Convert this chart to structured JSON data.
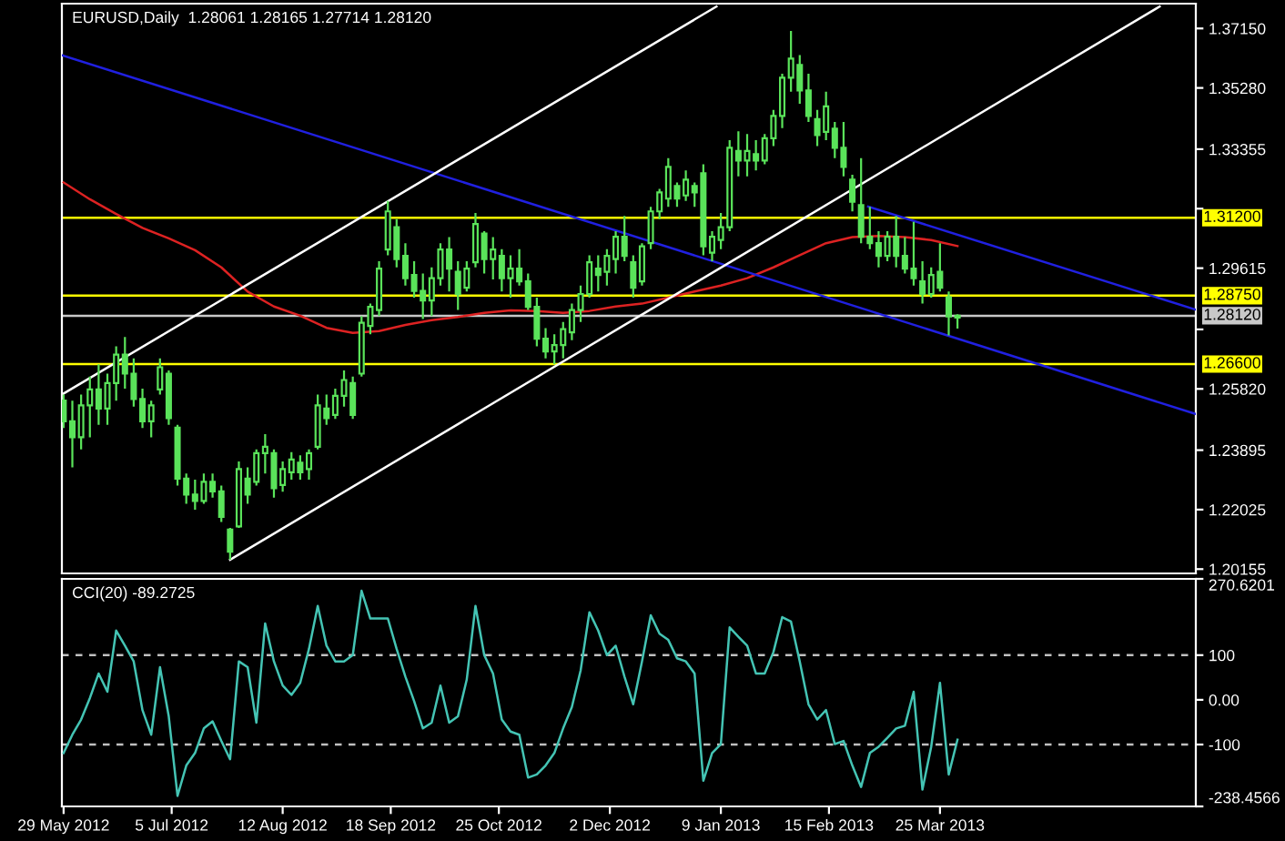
{
  "chart_data": [
    {
      "type": "candlestick",
      "title": "EURUSD,Daily  1.28061 1.28165 1.27714 1.28120",
      "color": "#5ae35a",
      "x": [
        "2012-05-29",
        "2012-06-01",
        "2012-06-04",
        "2012-06-07",
        "2012-06-10",
        "2012-06-13",
        "2012-06-16",
        "2012-06-19",
        "2012-06-22",
        "2012-06-25",
        "2012-06-28",
        "2012-07-01",
        "2012-07-04",
        "2012-07-07",
        "2012-07-10",
        "2012-07-13",
        "2012-07-16",
        "2012-07-19",
        "2012-07-22",
        "2012-07-25",
        "2012-07-28",
        "2012-07-31",
        "2012-08-03",
        "2012-08-06",
        "2012-08-09",
        "2012-08-12",
        "2012-08-15",
        "2012-08-18",
        "2012-08-21",
        "2012-08-24",
        "2012-08-27",
        "2012-08-30",
        "2012-09-02",
        "2012-09-05",
        "2012-09-08",
        "2012-09-11",
        "2012-09-14",
        "2012-09-17",
        "2012-09-20",
        "2012-09-23",
        "2012-09-26",
        "2012-09-29",
        "2012-10-02",
        "2012-10-05",
        "2012-10-08",
        "2012-10-11",
        "2012-10-14",
        "2012-10-17",
        "2012-10-20",
        "2012-10-23",
        "2012-10-26",
        "2012-10-29",
        "2012-11-01",
        "2012-11-04",
        "2012-11-07",
        "2012-11-10",
        "2012-11-13",
        "2012-11-16",
        "2012-11-19",
        "2012-11-22",
        "2012-11-25",
        "2012-11-28",
        "2012-12-01",
        "2012-12-04",
        "2012-12-07",
        "2012-12-10",
        "2012-12-13",
        "2012-12-16",
        "2012-12-19",
        "2012-12-22",
        "2012-12-25",
        "2012-12-28",
        "2012-12-31",
        "2013-01-03",
        "2013-01-06",
        "2013-01-09",
        "2013-01-12",
        "2013-01-15",
        "2013-01-18",
        "2013-01-21",
        "2013-01-24",
        "2013-01-27",
        "2013-01-30",
        "2013-02-02",
        "2013-02-05",
        "2013-02-08",
        "2013-02-11",
        "2013-02-14",
        "2013-02-17",
        "2013-02-20",
        "2013-02-23",
        "2013-02-26",
        "2013-03-01",
        "2013-03-04",
        "2013-03-07",
        "2013-03-10",
        "2013-03-13",
        "2013-03-16",
        "2013-03-19",
        "2013-03-22",
        "2013-03-25",
        "2013-03-28",
        "2013-03-31"
      ],
      "ohlc": [
        [
          1.2545,
          1.2564,
          1.2459,
          1.248
        ],
        [
          1.248,
          1.2545,
          1.2335,
          1.243
        ],
        [
          1.243,
          1.2564,
          1.2392,
          1.253
        ],
        [
          1.253,
          1.2621,
          1.243,
          1.258
        ],
        [
          1.258,
          1.2659,
          1.2469,
          1.252
        ],
        [
          1.252,
          1.263,
          1.2469,
          1.26
        ],
        [
          1.26,
          1.2716,
          1.2545,
          1.269
        ],
        [
          1.269,
          1.2745,
          1.2583,
          1.263
        ],
        [
          1.263,
          1.2678,
          1.2526,
          1.255
        ],
        [
          1.255,
          1.2583,
          1.2459,
          1.248
        ],
        [
          1.248,
          1.2545,
          1.243,
          1.253
        ],
        [
          1.258,
          1.2678,
          1.2564,
          1.265
        ],
        [
          1.263,
          1.264,
          1.2469,
          1.249
        ],
        [
          1.246,
          1.2469,
          1.2278,
          1.23
        ],
        [
          1.23,
          1.2316,
          1.2221,
          1.225
        ],
        [
          1.225,
          1.2297,
          1.2202,
          1.223
        ],
        [
          1.223,
          1.2316,
          1.2221,
          1.229
        ],
        [
          1.229,
          1.2316,
          1.224,
          1.226
        ],
        [
          1.226,
          1.2278,
          1.2164,
          1.218
        ],
        [
          1.214,
          1.2145,
          1.2045,
          1.207
        ],
        [
          1.215,
          1.2354,
          1.2145,
          1.233
        ],
        [
          1.23,
          1.2335,
          1.2221,
          1.225
        ],
        [
          1.229,
          1.2392,
          1.2278,
          1.238
        ],
        [
          1.238,
          1.244,
          1.2316,
          1.24
        ],
        [
          1.238,
          1.2392,
          1.224,
          1.227
        ],
        [
          1.228,
          1.2354,
          1.2259,
          1.233
        ],
        [
          1.232,
          1.2383,
          1.2297,
          1.236
        ],
        [
          1.235,
          1.2373,
          1.2297,
          1.232
        ],
        [
          1.233,
          1.2392,
          1.2297,
          1.238
        ],
        [
          1.24,
          1.2564,
          1.2392,
          1.253
        ],
        [
          1.252,
          1.2564,
          1.2469,
          1.249
        ],
        [
          1.25,
          1.2583,
          1.2488,
          1.256
        ],
        [
          1.256,
          1.264,
          1.2526,
          1.261
        ],
        [
          1.26,
          1.2621,
          1.2488,
          1.25
        ],
        [
          1.263,
          1.2811,
          1.2621,
          1.279
        ],
        [
          1.278,
          1.285,
          1.2754,
          1.284
        ],
        [
          1.283,
          1.2983,
          1.2811,
          1.296
        ],
        [
          1.302,
          1.3173,
          1.3002,
          1.314
        ],
        [
          1.309,
          1.3116,
          1.2964,
          1.299
        ],
        [
          1.3,
          1.304,
          1.2907,
          1.293
        ],
        [
          1.294,
          1.2983,
          1.2869,
          1.289
        ],
        [
          1.289,
          1.2945,
          1.2802,
          1.286
        ],
        [
          1.286,
          1.2964,
          1.2811,
          1.293
        ],
        [
          1.293,
          1.304,
          1.2907,
          1.302
        ],
        [
          1.302,
          1.3059,
          1.2888,
          1.296
        ],
        [
          1.295,
          1.2983,
          1.283,
          1.288
        ],
        [
          1.29,
          1.2983,
          1.2888,
          1.296
        ],
        [
          1.298,
          1.3135,
          1.2964,
          1.31
        ],
        [
          1.307,
          1.3078,
          1.2945,
          1.299
        ],
        [
          1.299,
          1.3059,
          1.2926,
          1.302
        ],
        [
          1.3,
          1.3021,
          1.2888,
          1.293
        ],
        [
          1.293,
          1.3002,
          1.2869,
          1.296
        ],
        [
          1.296,
          1.3021,
          1.2907,
          1.292
        ],
        [
          1.292,
          1.2945,
          1.283,
          1.284
        ],
        [
          1.284,
          1.2869,
          1.2716,
          1.274
        ],
        [
          1.274,
          1.2773,
          1.2678,
          1.27
        ],
        [
          1.27,
          1.2754,
          1.2659,
          1.272
        ],
        [
          1.272,
          1.2792,
          1.2678,
          1.277
        ],
        [
          1.276,
          1.285,
          1.2735,
          1.283
        ],
        [
          1.283,
          1.2907,
          1.2792,
          1.288
        ],
        [
          1.288,
          1.3002,
          1.2869,
          1.298
        ],
        [
          1.296,
          1.3002,
          1.2888,
          1.294
        ],
        [
          1.295,
          1.3021,
          1.2907,
          1.3
        ],
        [
          1.299,
          1.3078,
          1.2945,
          1.306
        ],
        [
          1.306,
          1.3126,
          1.2983,
          1.3
        ],
        [
          1.298,
          1.3002,
          1.2869,
          1.29
        ],
        [
          1.292,
          1.304,
          1.2907,
          1.303
        ],
        [
          1.304,
          1.3154,
          1.3021,
          1.314
        ],
        [
          1.314,
          1.3211,
          1.3116,
          1.32
        ],
        [
          1.318,
          1.3307,
          1.3154,
          1.328
        ],
        [
          1.322,
          1.3231,
          1.3154,
          1.318
        ],
        [
          1.319,
          1.3269,
          1.3173,
          1.324
        ],
        [
          1.322,
          1.3231,
          1.3154,
          1.32
        ],
        [
          1.326,
          1.3288,
          1.3002,
          1.303
        ],
        [
          1.301,
          1.3078,
          1.2983,
          1.306
        ],
        [
          1.305,
          1.3135,
          1.3021,
          1.309
        ],
        [
          1.309,
          1.3364,
          1.3078,
          1.334
        ],
        [
          1.333,
          1.3392,
          1.325,
          1.33
        ],
        [
          1.33,
          1.3383,
          1.325,
          1.333
        ],
        [
          1.332,
          1.3364,
          1.3269,
          1.33
        ],
        [
          1.33,
          1.3383,
          1.3288,
          1.337
        ],
        [
          1.337,
          1.3459,
          1.3345,
          1.344
        ],
        [
          1.344,
          1.3573,
          1.3402,
          1.356
        ],
        [
          1.356,
          1.3707,
          1.3516,
          1.362
        ],
        [
          1.36,
          1.3631,
          1.3478,
          1.352
        ],
        [
          1.352,
          1.3573,
          1.3421,
          1.344
        ],
        [
          1.343,
          1.3459,
          1.3345,
          1.338
        ],
        [
          1.339,
          1.3516,
          1.3364,
          1.347
        ],
        [
          1.34,
          1.3421,
          1.3307,
          1.334
        ],
        [
          1.334,
          1.3421,
          1.325,
          1.328
        ],
        [
          1.324,
          1.3255,
          1.314,
          1.317
        ],
        [
          1.316,
          1.3307,
          1.304,
          1.306
        ],
        [
          1.306,
          1.3154,
          1.3021,
          1.304
        ],
        [
          1.304,
          1.3078,
          1.2964,
          1.3
        ],
        [
          1.3,
          1.3078,
          1.2983,
          1.306
        ],
        [
          1.306,
          1.3126,
          1.2964,
          1.3
        ],
        [
          1.3,
          1.3059,
          1.2945,
          1.296
        ],
        [
          1.296,
          1.3107,
          1.2907,
          1.293
        ],
        [
          1.292,
          1.2983,
          1.285,
          1.288
        ],
        [
          1.288,
          1.2964,
          1.2869,
          1.294
        ],
        [
          1.295,
          1.304,
          1.2888,
          1.29
        ],
        [
          1.287,
          1.2888,
          1.275,
          1.281
        ],
        [
          1.28061,
          1.28165,
          1.27714,
          1.2812
        ]
      ],
      "series": [
        {
          "type": "line",
          "color": "#dd2222",
          "x": [
            "2012-05-29",
            "2012-06-07",
            "2012-06-16",
            "2012-06-25",
            "2012-07-04",
            "2012-07-13",
            "2012-07-22",
            "2012-07-31",
            "2012-08-09",
            "2012-08-18",
            "2012-08-27",
            "2012-09-05",
            "2012-09-14",
            "2012-09-23",
            "2012-10-02",
            "2012-10-11",
            "2012-10-20",
            "2012-10-29",
            "2012-11-07",
            "2012-11-16",
            "2012-11-25",
            "2012-12-04",
            "2012-12-13",
            "2012-12-22",
            "2012-12-31",
            "2013-01-09",
            "2013-01-18",
            "2013-01-27",
            "2013-02-05",
            "2013-02-14",
            "2013-02-23",
            "2013-03-04",
            "2013-03-13",
            "2013-03-22",
            "2013-03-31"
          ],
          "values": [
            1.3231,
            1.3178,
            1.3132,
            1.3088,
            1.3055,
            1.3018,
            1.2964,
            1.2888,
            1.2841,
            1.2812,
            1.2774,
            1.2758,
            1.2764,
            1.2783,
            1.2798,
            1.2808,
            1.2821,
            1.2829,
            1.2827,
            1.2821,
            1.2827,
            1.2841,
            1.285,
            1.2869,
            1.2888,
            1.2907,
            1.293,
            1.2964,
            1.3002,
            1.304,
            1.3059,
            1.3063,
            1.3059,
            1.305,
            1.3031
          ]
        },
        {
          "type": "line",
          "color": "#2020e0",
          "x": [
            "2012-05-28T10:00",
            "2013-06-20T14:00"
          ],
          "values": [
            1.3631,
            1.2503
          ]
        },
        {
          "type": "line",
          "color": "#2020e0",
          "x": [
            "2013-02-28T10:00",
            "2013-06-20T14:00"
          ],
          "values": [
            1.3155,
            1.2831
          ]
        },
        {
          "type": "line",
          "color": "#ffffff",
          "x": [
            "2012-05-28T10:00",
            "2013-01-07T12:00"
          ],
          "values": [
            1.2564,
            1.3784
          ]
        },
        {
          "type": "line",
          "color": "#ffffff",
          "x": [
            "2012-07-25",
            "2013-06-08T05:00"
          ],
          "values": [
            1.2045,
            1.3784
          ]
        }
      ],
      "ref_lines": [
        {
          "axis": "y",
          "value": 1.312,
          "label": "1.31200",
          "color": "#ffff00"
        },
        {
          "axis": "y",
          "value": 1.2875,
          "label": "1.28750",
          "color": "#ffff00"
        },
        {
          "axis": "y",
          "value": 1.2812,
          "label": "1.28120",
          "color": "#c8c8c8"
        },
        {
          "axis": "y",
          "value": 1.266,
          "label": "1.26600",
          "color": "#ffff00"
        }
      ],
      "xlim": [
        "2012-05-28T10:00",
        "2013-06-20T14:00"
      ],
      "ylim": [
        1.2002,
        1.3793
      ],
      "yticks": [
        {
          "value": 1.3715,
          "label": "1.37150"
        },
        {
          "value": 1.3528,
          "label": "1.35280"
        },
        {
          "value": 1.33355,
          "label": "1.33355"
        },
        {
          "value": 1.31485,
          "label": null
        },
        {
          "value": 1.29615,
          "label": "1.29615"
        },
        {
          "value": 1.2769,
          "label": null
        },
        {
          "value": 1.2582,
          "label": "1.25820"
        },
        {
          "value": 1.23895,
          "label": "1.23895"
        },
        {
          "value": 1.22025,
          "label": "1.22025"
        },
        {
          "value": 1.20155,
          "label": "1.20155"
        }
      ],
      "tick_labels": "y"
    },
    {
      "type": "line",
      "title": "CCI(20) -89.2725",
      "color": "#44c4b4",
      "x": [
        "2012-05-29",
        "2012-06-01",
        "2012-06-04",
        "2012-06-07",
        "2012-06-10",
        "2012-06-13",
        "2012-06-16",
        "2012-06-19",
        "2012-06-22",
        "2012-06-25",
        "2012-06-28",
        "2012-07-01",
        "2012-07-04",
        "2012-07-07",
        "2012-07-10",
        "2012-07-13",
        "2012-07-16",
        "2012-07-19",
        "2012-07-22",
        "2012-07-25",
        "2012-07-28",
        "2012-07-31",
        "2012-08-03",
        "2012-08-06",
        "2012-08-09",
        "2012-08-12",
        "2012-08-15",
        "2012-08-18",
        "2012-08-21",
        "2012-08-24",
        "2012-08-27",
        "2012-08-30",
        "2012-09-02",
        "2012-09-05",
        "2012-09-08",
        "2012-09-11",
        "2012-09-14",
        "2012-09-17",
        "2012-09-20",
        "2012-09-23",
        "2012-09-26",
        "2012-09-29",
        "2012-10-02",
        "2012-10-05",
        "2012-10-08",
        "2012-10-11",
        "2012-10-14",
        "2012-10-17",
        "2012-10-20",
        "2012-10-23",
        "2012-10-26",
        "2012-10-29",
        "2012-11-01",
        "2012-11-04",
        "2012-11-07",
        "2012-11-10",
        "2012-11-13",
        "2012-11-16",
        "2012-11-19",
        "2012-11-22",
        "2012-11-25",
        "2012-11-28",
        "2012-12-01",
        "2012-12-04",
        "2012-12-07",
        "2012-12-10",
        "2012-12-13",
        "2012-12-16",
        "2012-12-19",
        "2012-12-22",
        "2012-12-25",
        "2012-12-28",
        "2012-12-31",
        "2013-01-03",
        "2013-01-06",
        "2013-01-09",
        "2013-01-12",
        "2013-01-15",
        "2013-01-18",
        "2013-01-21",
        "2013-01-24",
        "2013-01-27",
        "2013-01-30",
        "2013-02-02",
        "2013-02-05",
        "2013-02-08",
        "2013-02-11",
        "2013-02-14",
        "2013-02-17",
        "2013-02-20",
        "2013-02-23",
        "2013-02-26",
        "2013-03-01",
        "2013-03-04",
        "2013-03-07",
        "2013-03-10",
        "2013-03-13",
        "2013-03-16",
        "2013-03-19",
        "2013-03-22",
        "2013-03-25",
        "2013-03-28",
        "2013-03-31"
      ],
      "values": [
        -119,
        -78,
        -44,
        4,
        59,
        18,
        155,
        121,
        86,
        -23,
        -78,
        73,
        -37,
        -215,
        -147,
        -119,
        -64,
        -48,
        -92,
        -133,
        86,
        73,
        -51,
        171,
        86,
        32,
        11,
        38,
        114,
        210,
        121,
        86,
        86,
        100,
        244,
        182,
        182,
        182,
        114,
        52,
        -3,
        -64,
        -51,
        32,
        -51,
        -37,
        45,
        210,
        100,
        59,
        -44,
        -71,
        -78,
        -174,
        -167,
        -147,
        -119,
        -64,
        -16,
        66,
        196,
        155,
        100,
        121,
        52,
        -10,
        86,
        189,
        148,
        134,
        93,
        86,
        59,
        -181,
        -119,
        -99,
        162,
        141,
        121,
        59,
        59,
        107,
        185,
        175,
        86,
        -10,
        -44,
        -23,
        -99,
        -92,
        -147,
        -195,
        -119,
        -105,
        -85,
        -64,
        -58,
        18,
        -201,
        -105,
        38,
        -167,
        -89.2725
      ],
      "xlim": [
        "2012-05-28T10:00",
        "2013-06-20T14:00"
      ],
      "xticks": [
        {
          "value": "2012-05-29",
          "label": "29 May 2012"
        },
        {
          "value": "2012-07-05",
          "label": "5 Jul 2012"
        },
        {
          "value": "2012-08-12",
          "label": "12 Aug 2012"
        },
        {
          "value": "2012-09-18",
          "label": "18 Sep 2012"
        },
        {
          "value": "2012-10-25",
          "label": "25 Oct 2012"
        },
        {
          "value": "2012-12-02",
          "label": "2 Dec 2012"
        },
        {
          "value": "2013-01-09",
          "label": "9 Jan 2013"
        },
        {
          "value": "2013-02-15",
          "label": "15 Feb 2013"
        },
        {
          "value": "2013-03-25",
          "label": "25 Mar 2013"
        }
      ],
      "ylim": [
        -238.4566,
        270.6201
      ],
      "yticks": [
        {
          "value": 270.6201,
          "label": "270.6201"
        },
        100,
        {
          "value": 0,
          "label": "0.00"
        },
        -100,
        {
          "value": -238.4566,
          "label": "-238.4566"
        }
      ],
      "ref_lines": [
        {
          "axis": "y",
          "value": 100,
          "color": "#c0c0c0",
          "line_style": "dashed"
        },
        {
          "axis": "y",
          "value": -100,
          "color": "#c0c0c0",
          "line_style": "dashed"
        }
      ]
    }
  ]
}
